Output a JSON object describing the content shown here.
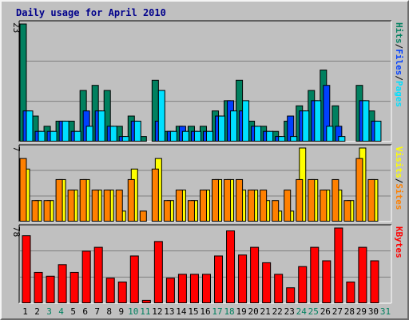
{
  "title": "Daily usage for April 2010",
  "colors": {
    "hits": "#00805f",
    "files": "#0040ff",
    "pages": "#00e0ff",
    "visits": "#ffff00",
    "sites": "#ff8000",
    "kbytes": "#ff0000",
    "panel_bg": "#c0c0c0",
    "weekend_day": "#00805f",
    "weekday_day": "#000000"
  },
  "chart_data": {
    "type": "bar",
    "title": "Daily usage for April 2010",
    "categories": [
      "1",
      "2",
      "3",
      "4",
      "5",
      "6",
      "7",
      "8",
      "9",
      "10",
      "11",
      "12",
      "13",
      "14",
      "15",
      "16",
      "17",
      "18",
      "19",
      "20",
      "21",
      "22",
      "23",
      "24",
      "25",
      "26",
      "27",
      "28",
      "29",
      "30",
      "31"
    ],
    "weekend_days": [
      3,
      4,
      10,
      11,
      17,
      18,
      24,
      25,
      31
    ],
    "panels": [
      {
        "id": "top",
        "max_label": "23",
        "ylim": [
          0,
          23
        ],
        "legend": [
          {
            "text": "Pages",
            "color": "#00e0ff"
          },
          {
            "text": "Files",
            "color": "#0040ff"
          },
          {
            "text": "Hits",
            "color": "#00805f"
          }
        ],
        "series": [
          {
            "name": "Hits",
            "values": [
              23,
              5,
              3,
              4,
              4,
              10,
              11,
              10,
              3,
              5,
              1,
              12,
              2,
              3,
              3,
              3,
              6,
              8,
              12,
              4,
              3,
              2,
              4,
              7,
              10,
              14,
              7,
              0,
              11,
              6,
              0
            ]
          },
          {
            "name": "Files",
            "values": [
              6,
              2,
              2,
              4,
              2,
              6,
              6,
              3,
              1,
              4,
              0,
              4,
              2,
              3,
              2,
              2,
              5,
              8,
              6,
              3,
              2,
              1,
              5,
              6,
              8,
              11,
              3,
              0,
              8,
              4,
              0
            ]
          },
          {
            "name": "Pages",
            "values": [
              6,
              2,
              2,
              4,
              2,
              3,
              6,
              3,
              1,
              4,
              0,
              10,
              2,
              2,
              2,
              2,
              5,
              6,
              8,
              3,
              2,
              1,
              1,
              6,
              8,
              3,
              1,
              0,
              8,
              4,
              0
            ]
          }
        ]
      },
      {
        "id": "middle",
        "max_label": "7",
        "ylim": [
          0,
          7
        ],
        "legend": [
          {
            "text": "Sites",
            "color": "#ff8000"
          },
          {
            "text": "Visits",
            "color": "#ffff00"
          }
        ],
        "series": [
          {
            "name": "Visits",
            "values": [
              5,
              2,
              2,
              4,
              3,
              4,
              3,
              3,
              1,
              5,
              0,
              6,
              2,
              3,
              2,
              3,
              4,
              4,
              3,
              3,
              2,
              1,
              1,
              7,
              4,
              3,
              3,
              2,
              7,
              4,
              0
            ]
          },
          {
            "name": "Sites",
            "values": [
              6,
              2,
              2,
              4,
              3,
              4,
              3,
              3,
              3,
              4,
              1,
              5,
              2,
              3,
              2,
              3,
              4,
              4,
              4,
              3,
              3,
              2,
              3,
              4,
              4,
              3,
              4,
              2,
              6,
              4,
              0
            ]
          }
        ]
      },
      {
        "id": "bottom",
        "max_label": "78",
        "ylim": [
          0,
          78
        ],
        "legend": [
          {
            "text": "KBytes",
            "color": "#ff0000"
          }
        ],
        "series": [
          {
            "name": "KBytes",
            "values": [
              70,
              32,
              28,
              40,
              32,
              54,
              58,
              26,
              22,
              49,
              3,
              64,
              26,
              30,
              30,
              30,
              49,
              75,
              50,
              58,
              42,
              30,
              16,
              38,
              58,
              44,
              78,
              22,
              58,
              44,
              0
            ]
          }
        ]
      }
    ]
  }
}
